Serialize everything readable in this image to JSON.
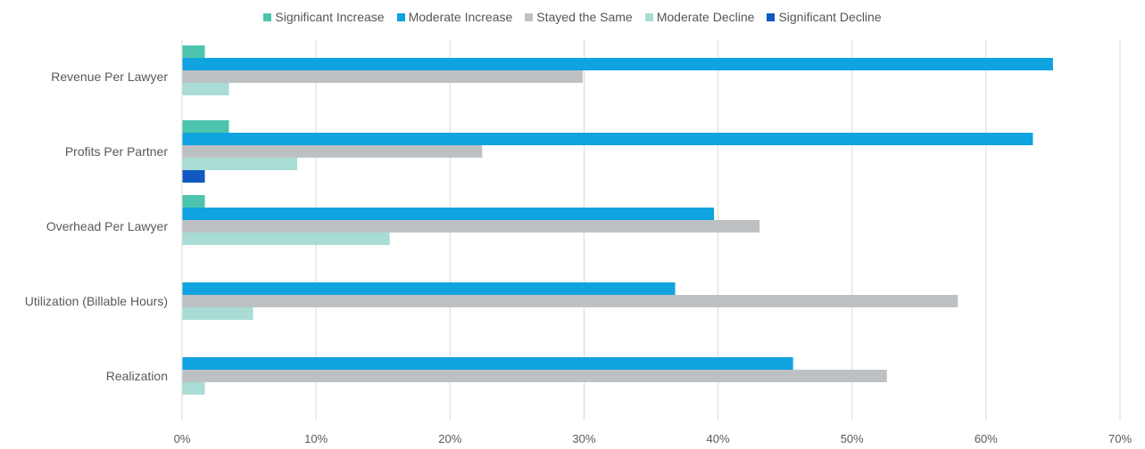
{
  "chart_data": {
    "type": "bar",
    "orientation": "horizontal",
    "categories": [
      "Revenue Per Lawyer",
      "Profits Per Partner",
      "Overhead Per Lawyer",
      "Utilization (Billable Hours)",
      "Realization"
    ],
    "series": [
      {
        "name": "Significant Increase",
        "color": "#4DC4AD",
        "values": [
          1.7,
          3.5,
          1.7,
          0,
          0
        ]
      },
      {
        "name": "Moderate Increase",
        "color": "#0FA3E0",
        "values": [
          65.0,
          63.5,
          39.7,
          36.8,
          45.6
        ]
      },
      {
        "name": "Stayed the Same",
        "color": "#BEC1C3",
        "values": [
          29.9,
          22.4,
          43.1,
          57.9,
          52.6
        ]
      },
      {
        "name": "Moderate Decline",
        "color": "#A8DCD5",
        "values": [
          3.5,
          8.6,
          15.5,
          5.3,
          1.7
        ]
      },
      {
        "name": "Significant Decline",
        "color": "#1159C0",
        "values": [
          0,
          1.7,
          0,
          0,
          0
        ]
      }
    ],
    "xlim": [
      0,
      70
    ],
    "x_ticks": [
      "0%",
      "10%",
      "20%",
      "30%",
      "40%",
      "50%",
      "60%",
      "70%"
    ],
    "grid": true,
    "legend_position": "top"
  }
}
